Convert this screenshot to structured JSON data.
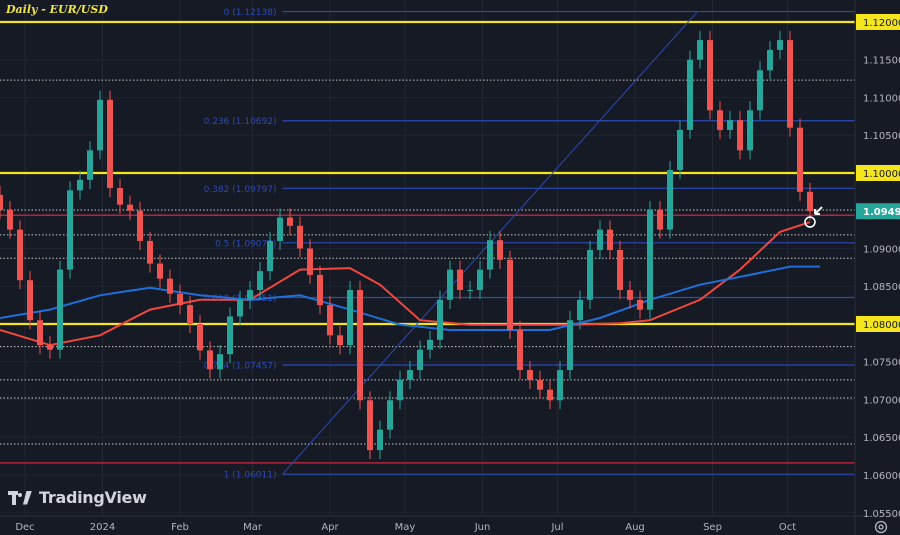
{
  "header": {
    "title": "Daily - EUR/USD"
  },
  "branding": {
    "logo_text": "TradingView"
  },
  "colors": {
    "background": "#161a25",
    "up": "#26a69a",
    "down": "#ef5350",
    "key_level": "#f5e51f",
    "fib": "#2b4bb5",
    "ma_red": "#f0483e",
    "ma_blue": "#1e6fd9",
    "support": "#b2243d",
    "last_price_bg": "#26a69a"
  },
  "chart_data": {
    "type": "candlestick",
    "title": "Daily - EUR/USD",
    "xlim": [
      "2023-11-21",
      "2024-10-28"
    ],
    "ylim": [
      1.05457,
      1.12291
    ],
    "grid": true,
    "x_ticks": [
      {
        "date": "2023-12-01",
        "label": "Dec"
      },
      {
        "date": "2024-01-01",
        "label": "2024"
      },
      {
        "date": "2024-02-01",
        "label": "Feb"
      },
      {
        "date": "2024-03-01",
        "label": "Mar"
      },
      {
        "date": "2024-04-01",
        "label": "Apr"
      },
      {
        "date": "2024-05-01",
        "label": "May"
      },
      {
        "date": "2024-06-01",
        "label": "Jun"
      },
      {
        "date": "2024-07-01",
        "label": "Jul"
      },
      {
        "date": "2024-08-01",
        "label": "Aug"
      },
      {
        "date": "2024-09-01",
        "label": "Sep"
      },
      {
        "date": "2024-10-01",
        "label": "Oct"
      }
    ],
    "y_ticks": [
      {
        "value": 1.12,
        "label": "1.12000",
        "highlight": "key"
      },
      {
        "value": 1.115,
        "label": "1.11500"
      },
      {
        "value": 1.11,
        "label": "1.11000"
      },
      {
        "value": 1.105,
        "label": "1.10500"
      },
      {
        "value": 1.1,
        "label": "1.10000",
        "highlight": "key"
      },
      {
        "value": 1.09494,
        "label": "1.09494",
        "highlight": "last"
      },
      {
        "value": 1.09,
        "label": "1.09000"
      },
      {
        "value": 1.085,
        "label": "1.08500"
      },
      {
        "value": 1.08,
        "label": "1.08000",
        "highlight": "key"
      },
      {
        "value": 1.075,
        "label": "1.07500"
      },
      {
        "value": 1.07,
        "label": "1.07000"
      },
      {
        "value": 1.065,
        "label": "1.06500"
      },
      {
        "value": 1.06,
        "label": "1.06000"
      },
      {
        "value": 1.055,
        "label": "1.05500"
      }
    ],
    "candles": {
      "dates": [
        "2023-11-21",
        "2023-11-25",
        "2023-11-29",
        "2023-12-03",
        "2023-12-07",
        "2023-12-11",
        "2023-12-15",
        "2023-12-19",
        "2023-12-23",
        "2023-12-27",
        "2023-12-31",
        "2024-01-04",
        "2024-01-08",
        "2024-01-12",
        "2024-01-16",
        "2024-01-20",
        "2024-01-24",
        "2024-01-28",
        "2024-02-01",
        "2024-02-05",
        "2024-02-09",
        "2024-02-13",
        "2024-02-17",
        "2024-02-21",
        "2024-02-25",
        "2024-02-29",
        "2024-03-04",
        "2024-03-08",
        "2024-03-12",
        "2024-03-16",
        "2024-03-20",
        "2024-03-24",
        "2024-03-28",
        "2024-04-01",
        "2024-04-05",
        "2024-04-09",
        "2024-04-13",
        "2024-04-17",
        "2024-04-21",
        "2024-04-25",
        "2024-04-29",
        "2024-05-03",
        "2024-05-07",
        "2024-05-11",
        "2024-05-15",
        "2024-05-19",
        "2024-05-23",
        "2024-05-27",
        "2024-05-31",
        "2024-06-04",
        "2024-06-08",
        "2024-06-12",
        "2024-06-16",
        "2024-06-20",
        "2024-06-24",
        "2024-06-28",
        "2024-07-02",
        "2024-07-06",
        "2024-07-10",
        "2024-07-14",
        "2024-07-18",
        "2024-07-22",
        "2024-07-26",
        "2024-07-30",
        "2024-08-03",
        "2024-08-07",
        "2024-08-11",
        "2024-08-15",
        "2024-08-19",
        "2024-08-23",
        "2024-08-27",
        "2024-08-31",
        "2024-09-04",
        "2024-09-08",
        "2024-09-12",
        "2024-09-16",
        "2024-09-20",
        "2024-09-24",
        "2024-09-28",
        "2024-10-02",
        "2024-10-06",
        "2024-10-10"
      ],
      "close": [
        1.0951,
        1.0925,
        1.0858,
        1.0805,
        1.0772,
        1.0766,
        1.0872,
        1.0977,
        1.0991,
        1.103,
        1.1097,
        1.098,
        1.0958,
        1.095,
        1.091,
        1.088,
        1.086,
        1.084,
        1.0825,
        1.08,
        1.0765,
        1.074,
        1.076,
        1.081,
        1.0832,
        1.0845,
        1.087,
        1.091,
        1.0941,
        1.093,
        1.09,
        1.0865,
        1.0825,
        1.0785,
        1.0772,
        1.0845,
        1.0699,
        1.0633,
        1.066,
        1.0699,
        1.0726,
        1.0739,
        1.0766,
        1.0779,
        1.0832,
        1.0872,
        1.0845,
        1.0845,
        1.0872,
        1.0911,
        1.0885,
        1.0792,
        1.0739,
        1.0726,
        1.0713,
        1.0699,
        1.0739,
        1.0805,
        1.0832,
        1.0898,
        1.0925,
        1.0898,
        1.0845,
        1.0832,
        1.0819,
        1.0951,
        1.0925,
        1.1004,
        1.1057,
        1.115,
        1.1176,
        1.1083,
        1.1057,
        1.107,
        1.103,
        1.1083,
        1.1136,
        1.1163,
        1.1176,
        1.106,
        1.0975,
        1.09494
      ]
    },
    "moving_averages": [
      {
        "color": "red",
        "dates": [
          "2023-11-21",
          "2023-12-11",
          "2023-12-31",
          "2024-01-20",
          "2024-02-09",
          "2024-02-29",
          "2024-03-20",
          "2024-04-09",
          "2024-04-21",
          "2024-05-07",
          "2024-05-27",
          "2024-06-16",
          "2024-07-06",
          "2024-07-26",
          "2024-08-07",
          "2024-08-27",
          "2024-09-12",
          "2024-09-28",
          "2024-10-10"
        ],
        "values": [
          1.0792,
          1.0772,
          1.0785,
          1.0819,
          1.0832,
          1.0832,
          1.0872,
          1.0874,
          1.0852,
          1.0805,
          1.0799,
          1.0799,
          1.0799,
          1.0801,
          1.0805,
          1.0832,
          1.0872,
          1.0922,
          1.0935
        ]
      },
      {
        "color": "blue",
        "dates": [
          "2023-11-21",
          "2023-12-11",
          "2023-12-31",
          "2024-01-20",
          "2024-02-09",
          "2024-02-29",
          "2024-03-20",
          "2024-04-09",
          "2024-04-29",
          "2024-05-19",
          "2024-06-08",
          "2024-06-28",
          "2024-07-18",
          "2024-08-07",
          "2024-08-27",
          "2024-09-16",
          "2024-10-02",
          "2024-10-14"
        ],
        "values": [
          1.0808,
          1.0819,
          1.0838,
          1.0848,
          1.0838,
          1.0832,
          1.0838,
          1.0819,
          1.0799,
          1.0792,
          1.0792,
          1.0792,
          1.0808,
          1.0832,
          1.0852,
          1.0865,
          1.0876,
          1.0876
        ]
      }
    ],
    "key_levels": [
      1.12,
      1.1,
      1.08
    ],
    "support_levels": [
      1.0944,
      1.0616
    ],
    "dotted_levels": [
      1.1123,
      1.0951,
      1.0918,
      1.0887,
      1.077,
      1.0726,
      1.0702,
      1.0641
    ],
    "fibonacci": {
      "from": {
        "date": "2024-04-16",
        "value": 1.06011
      },
      "to": {
        "date": "2024-08-26",
        "value": 1.12138
      },
      "levels": [
        {
          "ratio": "0",
          "value": 1.12138,
          "label": "0 (1.12138)"
        },
        {
          "ratio": "0.236",
          "value": 1.10692,
          "label": "0.236 (1.10692)"
        },
        {
          "ratio": "0.382",
          "value": 1.09797,
          "label": "0.382 (1.09797)"
        },
        {
          "ratio": "0.5",
          "value": 1.09075,
          "label": "0.5 (1.09075)"
        },
        {
          "ratio": "0.618",
          "value": 1.08351,
          "label": "0.618 (1.08351)"
        },
        {
          "ratio": "0.764",
          "value": 1.07457,
          "label": "0.764 (1.07457)"
        },
        {
          "ratio": "1",
          "value": 1.06011,
          "label": "1 (1.06011)"
        }
      ]
    },
    "annotations": [
      {
        "type": "circle-with-arrow",
        "date": "2024-10-10",
        "value": 1.0935
      }
    ]
  },
  "toolbar": {
    "settings_icon": "gear-icon"
  }
}
